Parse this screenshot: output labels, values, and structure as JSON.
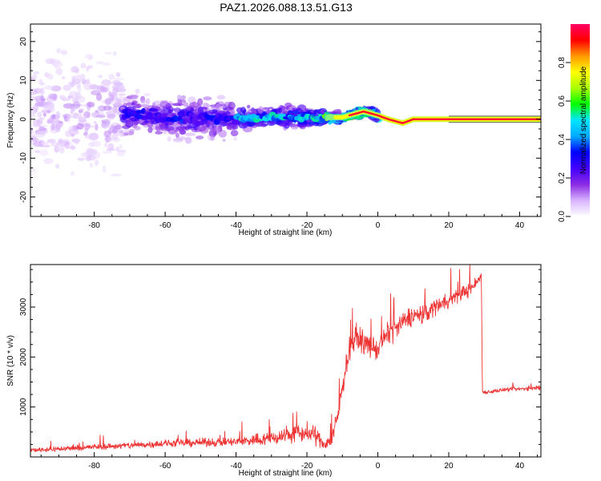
{
  "figure": {
    "title": "PAZ1.2026.088.13.51.G13"
  },
  "colors": {
    "snr_line": "#ee3333",
    "frame": "#000000",
    "ridge": "#ff1030"
  },
  "chart_data": [
    {
      "type": "heatmap",
      "title": "PAZ1.2026.088.13.51.G13",
      "xlabel": "Height of straight line (km)",
      "ylabel": "Frequency (Hz)",
      "xlim": [
        -98,
        46
      ],
      "ylim": [
        -25,
        24.5
      ],
      "x_ticks": [
        -80,
        -60,
        -40,
        -20,
        0,
        20,
        40
      ],
      "y_ticks": [
        -20,
        -10,
        0,
        10,
        20
      ],
      "colorbar": {
        "label": "Normalized spectral amplitude",
        "range": [
          0,
          1
        ],
        "ticks": [
          0.0,
          0.2,
          0.4,
          0.6,
          0.8
        ],
        "tick_labels": [
          "0.0",
          "0.2",
          "0.4",
          "0.6",
          "0.8"
        ],
        "colormap": [
          "#ffffff",
          "#d8b4ff",
          "#8a2be2",
          "#4400ff",
          "#0000ff",
          "#00aaff",
          "#00e5ff",
          "#00ff00",
          "#aaff00",
          "#ffff00",
          "#ff9900",
          "#ff0000",
          "#ff0066"
        ]
      },
      "description_regions": [
        {
          "x_range": [
            -98,
            -72
          ],
          "freq_spread": 24,
          "amplitude": 0.12
        },
        {
          "x_range": [
            -72,
            -40
          ],
          "freq_spread": 8,
          "amplitude": 0.3
        },
        {
          "x_range": [
            -40,
            -15
          ],
          "freq_spread": 4,
          "amplitude": 0.45
        },
        {
          "x_range": [
            -15,
            0
          ],
          "freq_spread": 2,
          "amplitude": 0.7
        },
        {
          "x_range": [
            0,
            46
          ],
          "freq_spread": 0.6,
          "amplitude": 0.95
        }
      ],
      "ridge_frequency": [
        {
          "x": -72,
          "y": 1.5
        },
        {
          "x": -50,
          "y": 0
        },
        {
          "x": -30,
          "y": 0.5
        },
        {
          "x": -10,
          "y": 0.5
        },
        {
          "x": -4,
          "y": 2
        },
        {
          "x": 0,
          "y": 1
        },
        {
          "x": 3,
          "y": 0
        },
        {
          "x": 7,
          "y": -1
        },
        {
          "x": 10,
          "y": 0
        },
        {
          "x": 20,
          "y": 0
        },
        {
          "x": 46,
          "y": 0
        }
      ]
    },
    {
      "type": "line",
      "xlabel": "Height of straight line (km)",
      "ylabel": "SNR (10 * v/v)",
      "xlim": [
        -98,
        46
      ],
      "ylim": [
        0,
        3850
      ],
      "x_ticks": [
        -80,
        -60,
        -40,
        -20,
        0,
        20,
        40
      ],
      "y_ticks": [
        1000,
        2000,
        3000
      ],
      "series": [
        {
          "name": "SNR",
          "x": [
            -98,
            -90,
            -80,
            -70,
            -60,
            -50,
            -40,
            -30,
            -25,
            -20,
            -17,
            -15,
            -13,
            -11,
            -10,
            -9,
            -8,
            -6,
            -4,
            -2,
            0,
            2,
            4,
            6,
            8,
            10,
            12,
            14,
            16,
            18,
            20,
            22,
            24,
            26,
            28,
            29.2,
            29.5,
            31,
            34,
            38,
            42,
            46
          ],
          "values": [
            140,
            160,
            200,
            230,
            270,
            290,
            300,
            380,
            450,
            480,
            400,
            250,
            350,
            900,
            1400,
            1800,
            2200,
            2400,
            2300,
            2200,
            2150,
            2400,
            2550,
            2600,
            2750,
            2850,
            2800,
            2900,
            3000,
            3100,
            3150,
            3200,
            3300,
            3350,
            3500,
            3650,
            1300,
            1300,
            1330,
            1350,
            1370,
            1380
          ],
          "noise_amplitude": [
            70,
            80,
            90,
            100,
            110,
            120,
            140,
            220,
            260,
            280,
            250,
            150,
            200,
            280,
            300,
            320,
            320,
            330,
            330,
            330,
            330,
            330,
            320,
            320,
            310,
            300,
            300,
            280,
            260,
            250,
            240,
            230,
            220,
            210,
            180,
            120,
            60,
            60,
            60,
            60,
            60,
            60
          ]
        }
      ]
    }
  ]
}
